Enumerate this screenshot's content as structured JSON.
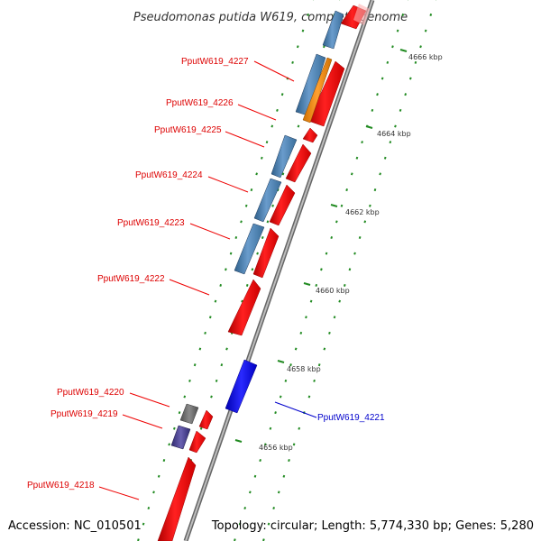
{
  "title": "Pseudomonas putida W619, complete genome",
  "accession": "Accession: NC_010501",
  "topology": "Topology: circular; Length: 5,774,330 bp; Genes: 5,280",
  "colors": {
    "forward_cds": "#ff0000",
    "reverse_cds": "#4682b4",
    "orf": "#ff8c00",
    "highlight": "#0000ee",
    "gray_feature": "#696969",
    "violet_feature": "#483d8b",
    "backbone": "#888888",
    "ticks": "#228b22",
    "label_red": "#dd0000",
    "label_blue": "#0000cc"
  },
  "scale_ticks": [
    {
      "label": "4656 kbp"
    },
    {
      "label": "4658 kbp"
    },
    {
      "label": "4660 kbp"
    },
    {
      "label": "4662 kbp"
    },
    {
      "label": "4664 kbp"
    },
    {
      "label": "4666 kbp"
    }
  ],
  "gene_labels": [
    {
      "text": "PputW619_4227"
    },
    {
      "text": "PputW619_4226"
    },
    {
      "text": "PputW619_4225"
    },
    {
      "text": "PputW619_4224"
    },
    {
      "text": "PputW619_4223"
    },
    {
      "text": "PputW619_4222"
    },
    {
      "text": "PputW619_4220"
    },
    {
      "text": "PputW619_4219"
    },
    {
      "text": "PputW619_4218"
    },
    {
      "text": "PputW619_4221"
    }
  ]
}
